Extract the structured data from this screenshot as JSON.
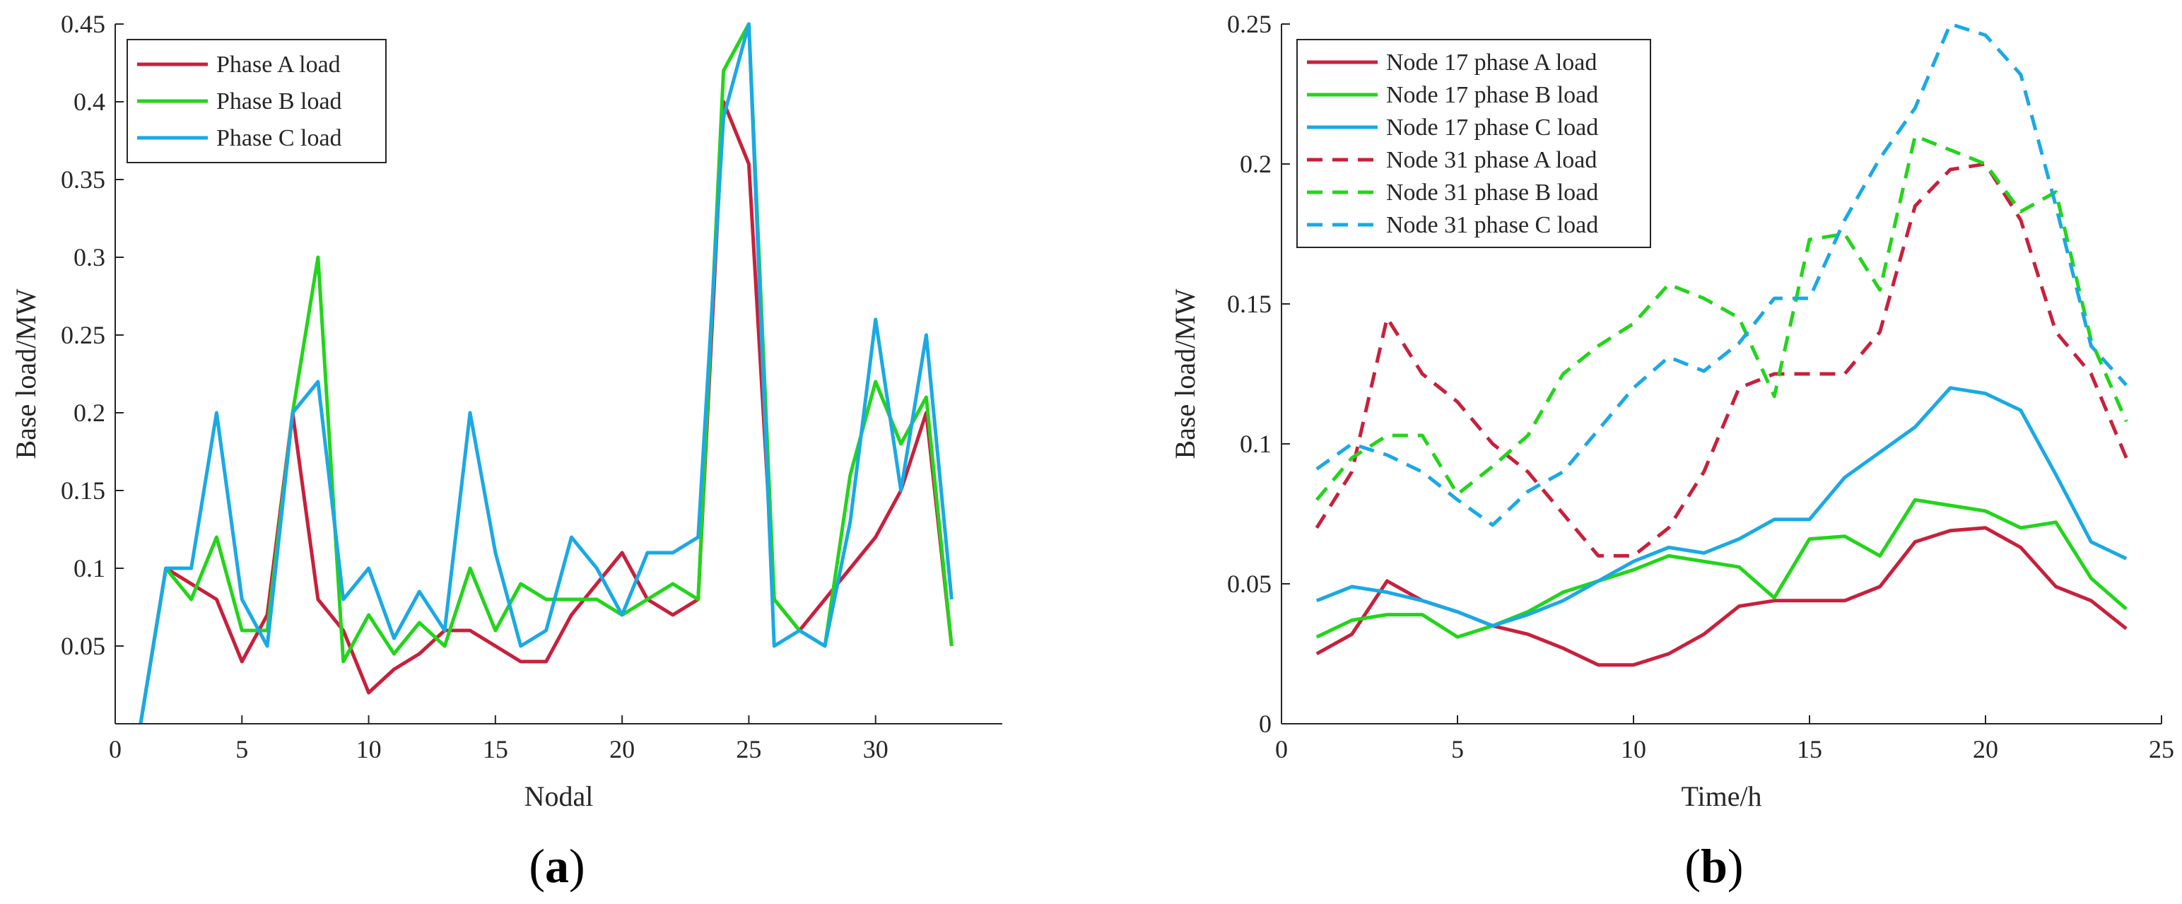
{
  "chart_data": [
    {
      "type": "line",
      "panel_label": "a",
      "caption_open": "(",
      "caption_close": ")",
      "xlabel": "Nodal",
      "ylabel": "Base load/MW",
      "xlim": [
        0,
        35
      ],
      "ylim": [
        0,
        0.45
      ],
      "xticks": [
        0,
        5,
        10,
        15,
        20,
        25,
        30
      ],
      "yticks": [
        0.05,
        0.1,
        0.15,
        0.2,
        0.25,
        0.3,
        0.35,
        0.4,
        0.45
      ],
      "ytick_labels": [
        "0.05",
        "0.1",
        "0.15",
        "0.2",
        "0.25",
        "0.3",
        "0.35",
        "0.4",
        "0.45"
      ],
      "x": [
        1,
        2,
        3,
        4,
        5,
        6,
        7,
        8,
        9,
        10,
        11,
        12,
        13,
        14,
        15,
        16,
        17,
        18,
        19,
        20,
        21,
        22,
        23,
        24,
        25,
        26,
        27,
        28,
        29,
        30,
        31,
        32,
        33
      ],
      "legend_position": "top-left",
      "series": [
        {
          "name": "Phase A load",
          "color": "#c8203c",
          "dash": "solid",
          "values": [
            0,
            0.1,
            0.09,
            0.08,
            0.04,
            0.07,
            0.2,
            0.08,
            0.06,
            0.02,
            0.035,
            0.045,
            0.06,
            0.06,
            0.05,
            0.04,
            0.04,
            0.07,
            0.09,
            0.11,
            0.08,
            0.07,
            0.08,
            0.4,
            0.36,
            0.08,
            0.06,
            0.08,
            0.1,
            0.12,
            0.15,
            0.2,
            0.05
          ]
        },
        {
          "name": "Phase B load",
          "color": "#22d51a",
          "dash": "solid",
          "values": [
            0,
            0.1,
            0.08,
            0.12,
            0.06,
            0.06,
            0.2,
            0.3,
            0.04,
            0.07,
            0.045,
            0.065,
            0.05,
            0.1,
            0.06,
            0.09,
            0.08,
            0.08,
            0.08,
            0.07,
            0.08,
            0.09,
            0.08,
            0.42,
            0.45,
            0.08,
            0.06,
            0.05,
            0.16,
            0.22,
            0.18,
            0.21,
            0.05
          ]
        },
        {
          "name": "Phase C load",
          "color": "#1aa9e4",
          "dash": "solid",
          "values": [
            0,
            0.1,
            0.1,
            0.2,
            0.08,
            0.05,
            0.2,
            0.22,
            0.08,
            0.1,
            0.055,
            0.085,
            0.06,
            0.2,
            0.11,
            0.05,
            0.06,
            0.12,
            0.1,
            0.07,
            0.11,
            0.11,
            0.12,
            0.39,
            0.45,
            0.05,
            0.06,
            0.05,
            0.13,
            0.26,
            0.15,
            0.25,
            0.08
          ]
        }
      ]
    },
    {
      "type": "line",
      "panel_label": "b",
      "caption_open": "(",
      "caption_close": ")",
      "xlabel": "Time/h",
      "ylabel": "Base load/MW",
      "xlim": [
        0,
        25
      ],
      "ylim": [
        0,
        0.25
      ],
      "xticks": [
        0,
        5,
        10,
        15,
        20,
        25
      ],
      "yticks": [
        0,
        0.05,
        0.1,
        0.15,
        0.2,
        0.25
      ],
      "ytick_labels": [
        "0",
        "0.05",
        "0.1",
        "0.15",
        "0.2",
        "0.25"
      ],
      "x": [
        1,
        2,
        3,
        4,
        5,
        6,
        7,
        8,
        9,
        10,
        11,
        12,
        13,
        14,
        15,
        16,
        17,
        18,
        19,
        20,
        21,
        22,
        23,
        24
      ],
      "legend_position": "top-left",
      "series": [
        {
          "name": "Node 17 phase A load",
          "color": "#c8203c",
          "dash": "solid",
          "values": [
            0.025,
            0.032,
            0.051,
            0.044,
            0.04,
            0.035,
            0.032,
            0.027,
            0.021,
            0.021,
            0.025,
            0.032,
            0.042,
            0.044,
            0.044,
            0.044,
            0.049,
            0.065,
            0.069,
            0.07,
            0.063,
            0.049,
            0.044,
            0.034
          ]
        },
        {
          "name": "Node 17 phase B load",
          "color": "#22d51a",
          "dash": "solid",
          "values": [
            0.031,
            0.037,
            0.039,
            0.039,
            0.031,
            0.035,
            0.04,
            0.047,
            0.051,
            0.055,
            0.06,
            0.058,
            0.056,
            0.045,
            0.066,
            0.067,
            0.06,
            0.08,
            0.078,
            0.076,
            0.07,
            0.072,
            0.052,
            0.041
          ]
        },
        {
          "name": "Node 17 phase C load",
          "color": "#1aa9e4",
          "dash": "solid",
          "values": [
            0.044,
            0.049,
            0.047,
            0.044,
            0.04,
            0.035,
            0.039,
            0.044,
            0.051,
            0.058,
            0.063,
            0.061,
            0.066,
            0.073,
            0.073,
            0.088,
            0.097,
            0.106,
            0.12,
            0.118,
            0.112,
            0.089,
            0.065,
            0.059
          ]
        },
        {
          "name": "Node 31 phase A load",
          "color": "#c8203c",
          "dash": "dashed",
          "values": [
            0.07,
            0.09,
            0.145,
            0.125,
            0.115,
            0.1,
            0.09,
            0.075,
            0.06,
            0.06,
            0.07,
            0.09,
            0.12,
            0.125,
            0.125,
            0.125,
            0.14,
            0.185,
            0.198,
            0.2,
            0.18,
            0.14,
            0.125,
            0.095
          ]
        },
        {
          "name": "Node 31 phase B load",
          "color": "#22d51a",
          "dash": "dashed",
          "values": [
            0.08,
            0.095,
            0.103,
            0.103,
            0.082,
            0.092,
            0.103,
            0.125,
            0.135,
            0.143,
            0.157,
            0.152,
            0.145,
            0.117,
            0.173,
            0.175,
            0.155,
            0.21,
            0.205,
            0.2,
            0.183,
            0.19,
            0.137,
            0.108
          ]
        },
        {
          "name": "Node 31 phase C load",
          "color": "#1aa9e4",
          "dash": "dashed",
          "values": [
            0.091,
            0.1,
            0.096,
            0.09,
            0.08,
            0.071,
            0.083,
            0.09,
            0.105,
            0.12,
            0.131,
            0.126,
            0.136,
            0.152,
            0.152,
            0.18,
            0.202,
            0.22,
            0.25,
            0.246,
            0.232,
            0.185,
            0.135,
            0.121
          ]
        }
      ]
    }
  ]
}
